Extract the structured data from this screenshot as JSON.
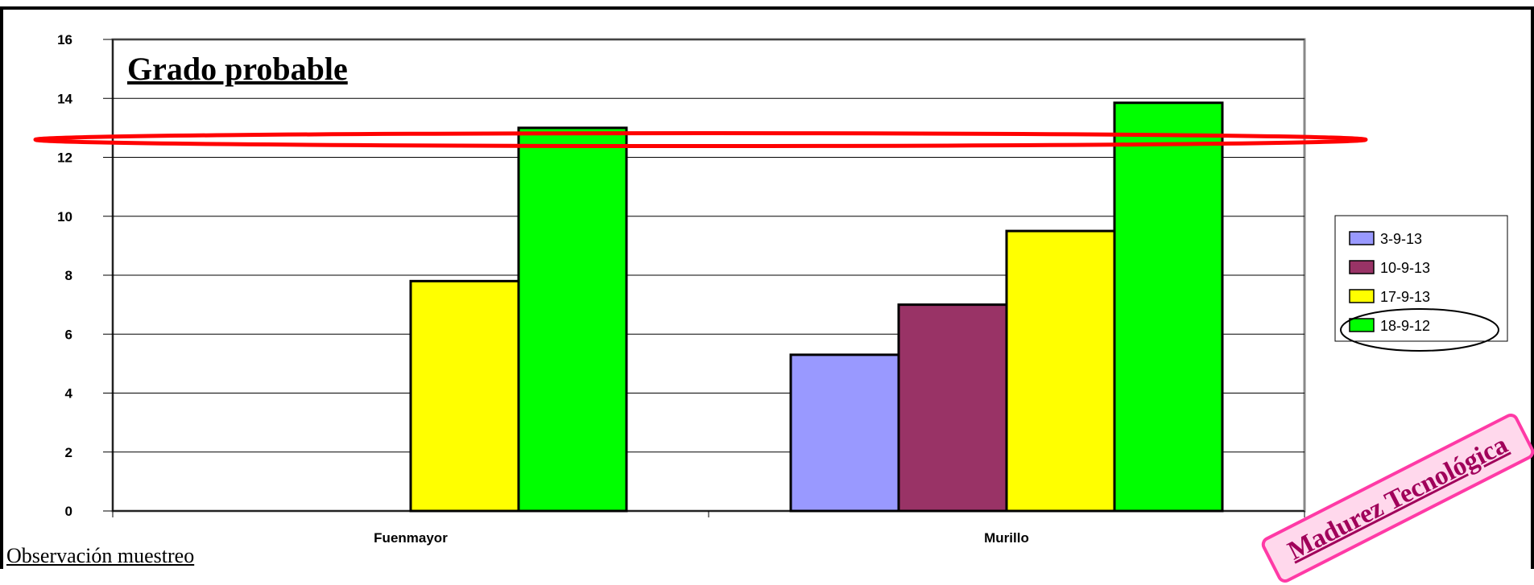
{
  "chart_data": {
    "type": "bar",
    "title": "Grado probable",
    "categories": [
      "Fuenmayor",
      "Murillo"
    ],
    "series": [
      {
        "name": "3-9-13",
        "color": "#9999ff",
        "values": [
          0,
          5.3
        ]
      },
      {
        "name": "10-9-13",
        "color": "#993366",
        "values": [
          0,
          7.0
        ]
      },
      {
        "name": "17-9-13",
        "color": "#ffff00",
        "values": [
          7.8,
          9.5
        ]
      },
      {
        "name": "18-9-12",
        "color": "#00ff00",
        "values": [
          13.0,
          13.85
        ]
      }
    ],
    "ylim": [
      0,
      16
    ],
    "yticks": [
      0,
      2,
      4,
      6,
      8,
      10,
      12,
      14,
      16
    ],
    "grid": true,
    "legend_position": "right",
    "annotations": [
      {
        "type": "red-ellipse-highlight",
        "value": 12.6,
        "color": "#ff0000"
      },
      {
        "type": "ellipse-around-legend-entry",
        "series": "18-9-12"
      }
    ]
  },
  "footer_note": "Observación muestreo",
  "stamp_text": "Madurez Tecnológica"
}
